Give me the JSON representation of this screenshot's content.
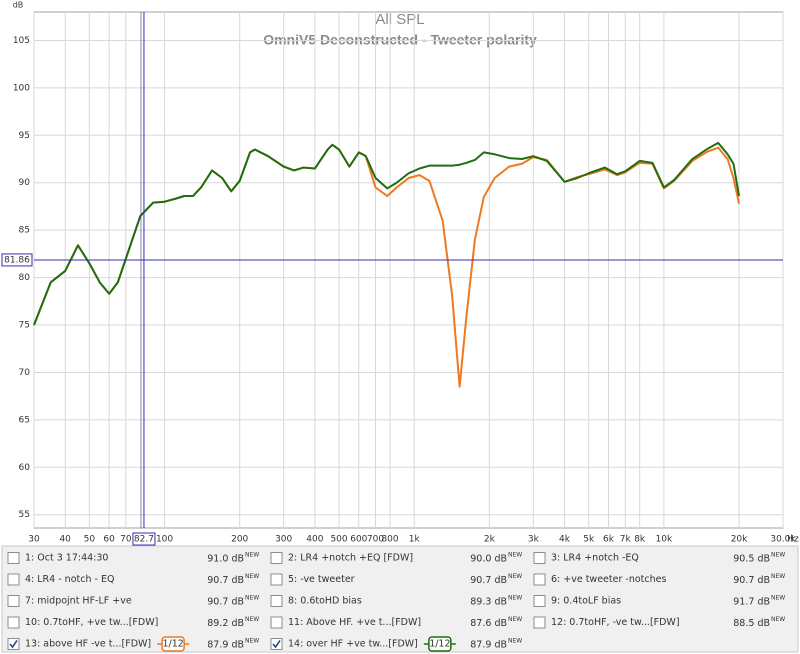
{
  "chart_data": {
    "type": "line",
    "title": "All SPL",
    "subtitle": "OmniV5 Deconstructed - Tweeter polarity",
    "ylabel": "dB",
    "xlabel": "Hz",
    "xscale": "log",
    "grid": true,
    "xlim": [
      30,
      30000
    ],
    "ylim": [
      53.6,
      108
    ],
    "yticks": [
      55,
      60,
      65,
      70,
      75,
      80,
      85,
      90,
      95,
      100,
      105
    ],
    "xticks": [
      30,
      40,
      50,
      60,
      70,
      100,
      200,
      300,
      400,
      500,
      600,
      700,
      800,
      {
        "value": 1000,
        "label": "1k"
      },
      {
        "value": 2000,
        "label": "2k"
      },
      {
        "value": 3000,
        "label": "3k"
      },
      {
        "value": 4000,
        "label": "4k"
      },
      {
        "value": 5000,
        "label": "5k"
      },
      {
        "value": 6000,
        "label": "6k"
      },
      {
        "value": 7000,
        "label": "7k"
      },
      {
        "value": 8000,
        "label": "8k"
      },
      {
        "value": 10000,
        "label": "10k"
      },
      {
        "value": 20000,
        "label": "20k"
      },
      {
        "value": 30000,
        "label": "30.0k"
      }
    ],
    "cursor": {
      "x": 82.7,
      "y": 81.86,
      "color": "#3030b0"
    },
    "x": [
      30,
      35,
      40,
      45,
      50,
      55,
      60,
      65,
      70,
      80,
      90,
      100,
      110,
      120,
      130,
      140,
      155,
      170,
      185,
      200,
      220,
      230,
      260,
      300,
      330,
      360,
      400,
      450,
      470,
      500,
      550,
      600,
      640,
      700,
      780,
      850,
      950,
      1050,
      1150,
      1300,
      1420,
      1520,
      1620,
      1750,
      1900,
      2100,
      2400,
      2700,
      3000,
      3400,
      4000,
      4500,
      5000,
      5800,
      6500,
      7000,
      8000,
      9000,
      10000,
      11000,
      13000,
      15000,
      16500,
      18000,
      19000,
      20000
    ],
    "series": [
      {
        "name": "13: above HF -ve t...[FDW]",
        "color": "#f07820",
        "values": [
          75,
          79.5,
          80.7,
          83.4,
          81.5,
          79.5,
          78.3,
          79.5,
          82,
          86.5,
          87.9,
          88,
          88.3,
          88.6,
          88.6,
          89.5,
          91.3,
          90.5,
          89.1,
          90.2,
          93.2,
          93.5,
          92.8,
          91.7,
          91.3,
          91.6,
          91.5,
          93.5,
          94,
          93.5,
          91.7,
          93.2,
          92.8,
          89.5,
          88.6,
          89.5,
          90.5,
          90.8,
          90.2,
          86,
          78,
          68.5,
          76,
          84,
          88.5,
          90.5,
          91.7,
          92,
          92.7,
          92.4,
          90.1,
          90.6,
          90.9,
          91.4,
          90.8,
          91.1,
          92.1,
          92,
          89.4,
          90.2,
          92.3,
          93.3,
          93.7,
          92.5,
          90.5,
          87.8
        ]
      },
      {
        "name": "14: over HF +ve tw...[FDW]",
        "color": "#1f6e12",
        "values": [
          75,
          79.5,
          80.7,
          83.4,
          81.5,
          79.5,
          78.3,
          79.5,
          82,
          86.5,
          87.9,
          88,
          88.3,
          88.6,
          88.6,
          89.5,
          91.3,
          90.5,
          89.1,
          90.2,
          93.2,
          93.5,
          92.8,
          91.7,
          91.3,
          91.6,
          91.5,
          93.5,
          94,
          93.5,
          91.7,
          93.2,
          92.8,
          90.5,
          89.4,
          90,
          91,
          91.5,
          91.8,
          91.8,
          91.8,
          91.9,
          92.1,
          92.4,
          93.2,
          93,
          92.6,
          92.5,
          92.8,
          92.3,
          90.1,
          90.5,
          91,
          91.6,
          90.9,
          91.2,
          92.3,
          92.1,
          89.5,
          90.3,
          92.5,
          93.6,
          94.2,
          93,
          92,
          88.6
        ]
      }
    ]
  },
  "legend_panel": {
    "tag": "NEW",
    "items": [
      {
        "name": "1: Oct 3 17:44:30",
        "reading": "91.0 dB",
        "color": "#3c3cc0",
        "checked": false
      },
      {
        "name": "2: LR4 +notch +EQ [FDW]",
        "reading": "90.0 dB",
        "color": "#b400b4",
        "checked": false
      },
      {
        "name": "3: LR4 +notch -EQ",
        "reading": "90.5 dB",
        "color": "#1e7882",
        "checked": false
      },
      {
        "name": "4: LR4 - notch - EQ",
        "reading": "90.7 dB",
        "color": "#c07800",
        "checked": false
      },
      {
        "name": "5: -ve tweeter",
        "reading": "90.7 dB",
        "color": "#c040a0",
        "checked": false
      },
      {
        "name": "6: +ve tweeter -notches",
        "reading": "90.7 dB",
        "color": "#2090a0",
        "checked": false
      },
      {
        "name": "7: midpojnt HF-LF +ve",
        "reading": "90.7 dB",
        "color": "#108010",
        "checked": false
      },
      {
        "name": "8: 0.6toHD bias",
        "reading": "89.3 dB",
        "color": "#4060b0",
        "checked": false
      },
      {
        "name": "9: 0.4toLF bias",
        "reading": "91.7 dB",
        "color": "#a000a0",
        "checked": false
      },
      {
        "name": "10: 0.7toHF, +ve tw...[FDW]",
        "reading": "89.2 dB",
        "color": "#1e7882",
        "checked": false
      },
      {
        "name": "11: Above HF. +ve t...[FDW]",
        "reading": "87.6 dB",
        "color": "#306830",
        "checked": false
      },
      {
        "name": "12: 0.7toHF, -ve tw...[FDW]",
        "reading": "88.5 dB",
        "color": "#404080",
        "checked": false
      },
      {
        "series": 0,
        "reading": "87.9 dB",
        "smoothing": "1/12",
        "checked": true
      },
      {
        "series": 1,
        "reading": "87.9 dB",
        "smoothing": "1/12",
        "checked": true
      }
    ]
  }
}
